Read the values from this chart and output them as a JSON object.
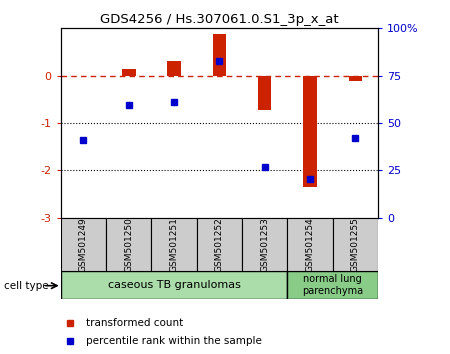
{
  "title": "GDS4256 / Hs.307061.0.S1_3p_x_at",
  "samples": [
    "GSM501249",
    "GSM501250",
    "GSM501251",
    "GSM501252",
    "GSM501253",
    "GSM501254",
    "GSM501255"
  ],
  "red_bars": [
    0.0,
    0.15,
    0.32,
    0.88,
    -0.72,
    -2.35,
    -0.12
  ],
  "blue_dots": [
    -1.35,
    -0.62,
    -0.55,
    0.32,
    -1.92,
    -2.18,
    -1.32
  ],
  "left_ylim": [
    -3,
    1
  ],
  "left_yticks": [
    0,
    -1,
    -2,
    -3
  ],
  "right_ylim": [
    0,
    100
  ],
  "right_yticks": [
    0,
    25,
    50,
    75,
    100
  ],
  "right_yticklabels": [
    "0",
    "25",
    "50",
    "75",
    "100%"
  ],
  "bar_color": "#CC2200",
  "dot_color": "#0000CC",
  "dashed_color": "#CC2200",
  "group1_label": "caseous TB granulomas",
  "group2_label": "normal lung\nparenchyma",
  "group1_color": "#AADDAA",
  "group2_color": "#88CC88",
  "cell_type_label": "cell type",
  "legend_red": "transformed count",
  "legend_blue": "percentile rank within the sample",
  "sample_box_color": "#CCCCCC",
  "bar_width": 0.3
}
